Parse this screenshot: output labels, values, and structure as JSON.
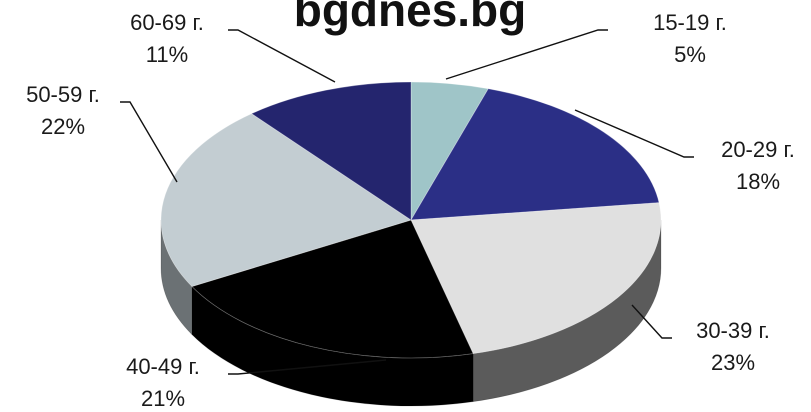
{
  "chart_data": {
    "type": "pie",
    "title": "bgdnes.bg",
    "categories": [
      "15-19 г.",
      "20-29 г.",
      "30-39 г.",
      "40-49 г.",
      "50-59 г.",
      "60-69 г."
    ],
    "values": [
      5,
      18,
      23,
      21,
      22,
      11
    ],
    "value_labels": [
      "5%",
      "18%",
      "23%",
      "21%",
      "22%",
      "11%"
    ],
    "colors": [
      "#9fc5c8",
      "#2b2f86",
      "#e0e0e0",
      "#000000",
      "#c3cdd2",
      "#24256e"
    ],
    "legend": "none",
    "style": "3d"
  }
}
